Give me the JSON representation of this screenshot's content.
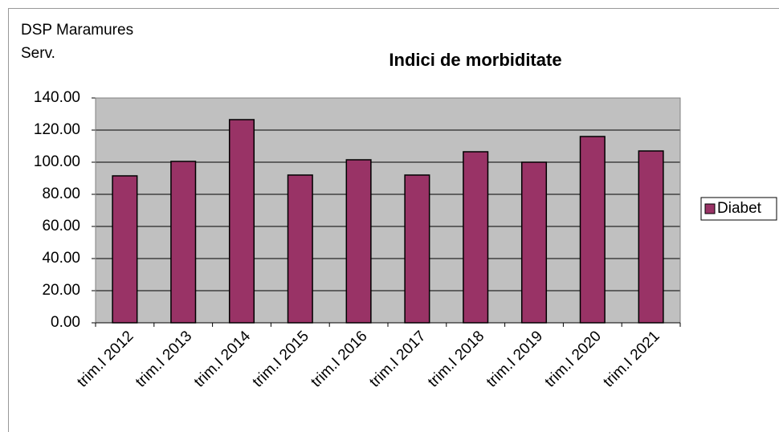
{
  "header": [
    "DSP Maramures",
    "Serv."
  ],
  "chart_data": {
    "type": "bar",
    "title": "Indici de morbiditate",
    "categories": [
      "trim.I 2012",
      "trim.I 2013",
      "trim.I 2014",
      "trim.I 2015",
      "trim.I 2016",
      "trim.I 2017",
      "trim.I 2018",
      "trim.I 2019",
      "trim.I 2020",
      "trim.I 2021"
    ],
    "series": [
      {
        "name": "Diabet",
        "color": "#993366",
        "values": [
          91.5,
          100.5,
          126.5,
          92,
          101.5,
          92,
          106.5,
          100,
          116,
          107
        ]
      }
    ],
    "ylim": [
      0,
      140
    ],
    "yticks": [
      {
        "value": 0,
        "label": "0.00"
      },
      {
        "value": 20,
        "label": "20.00"
      },
      {
        "value": 40,
        "label": "40.00"
      },
      {
        "value": 60,
        "label": "60.00"
      },
      {
        "value": 80,
        "label": "80.00"
      },
      {
        "value": 100,
        "label": "100.00"
      },
      {
        "value": 120,
        "label": "120.00"
      },
      {
        "value": 140,
        "label": "140.00"
      }
    ],
    "grid": true,
    "legend": "right",
    "plot_background": "#c0c0c0"
  }
}
